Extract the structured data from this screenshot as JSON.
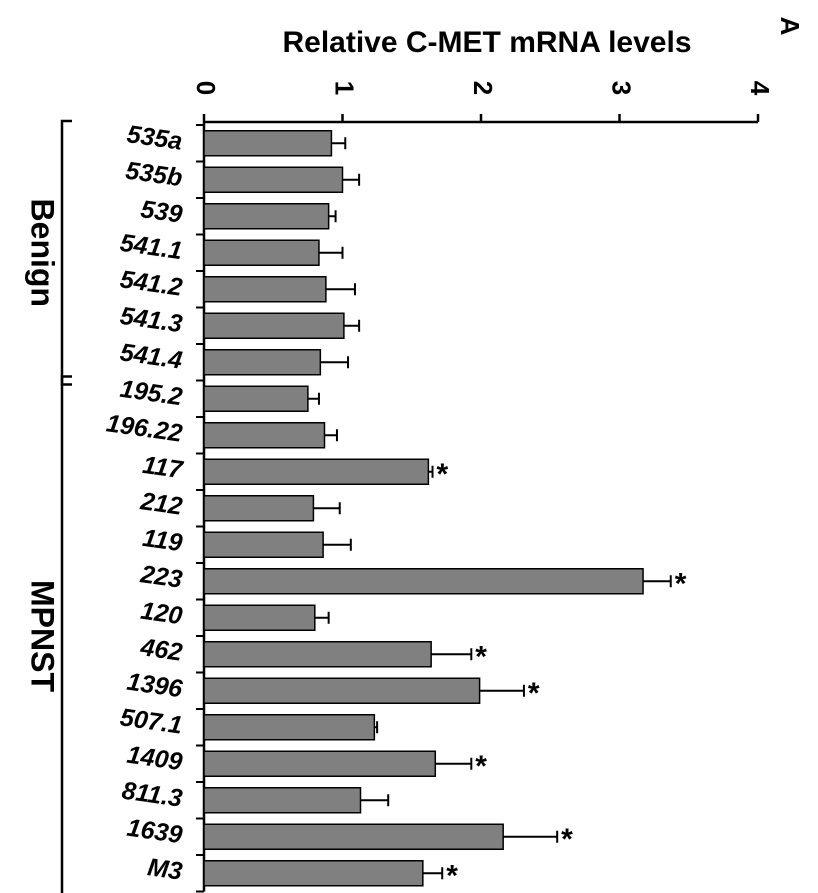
{
  "panel_label": "A",
  "chart_data": {
    "type": "bar",
    "orientation": "horizontal",
    "xlabel": "Relative  C-MET mRNA levels",
    "xlim": [
      0,
      4
    ],
    "xticks": [
      "0",
      "1",
      "2",
      "3",
      "4"
    ],
    "categories": [
      "535a",
      "535b",
      "539",
      "541.1",
      "541.2",
      "541.3",
      "541.4",
      "195.2",
      "196.22",
      "117",
      "212",
      "119",
      "223",
      "120",
      "462",
      "1396",
      "507.1",
      "1409",
      "811.3",
      "1639",
      "M3"
    ],
    "values": [
      0.92,
      1.0,
      0.9,
      0.83,
      0.88,
      1.01,
      0.84,
      0.75,
      0.87,
      1.62,
      0.79,
      0.86,
      3.17,
      0.8,
      1.64,
      1.99,
      1.23,
      1.67,
      1.13,
      2.16,
      1.58
    ],
    "errors": [
      0.1,
      0.12,
      0.05,
      0.17,
      0.21,
      0.11,
      0.2,
      0.08,
      0.09,
      0.03,
      0.19,
      0.2,
      0.2,
      0.1,
      0.29,
      0.32,
      0.02,
      0.26,
      0.2,
      0.39,
      0.14
    ],
    "significant": [
      false,
      false,
      false,
      false,
      false,
      false,
      false,
      false,
      false,
      true,
      false,
      false,
      true,
      false,
      true,
      true,
      false,
      true,
      false,
      true,
      true
    ],
    "significance_mark": "*",
    "bar_color": "#808080",
    "groups": [
      {
        "label": "Benign",
        "start": 0,
        "end": 6
      },
      {
        "label": "MPNST",
        "start": 7,
        "end": 20
      }
    ]
  }
}
